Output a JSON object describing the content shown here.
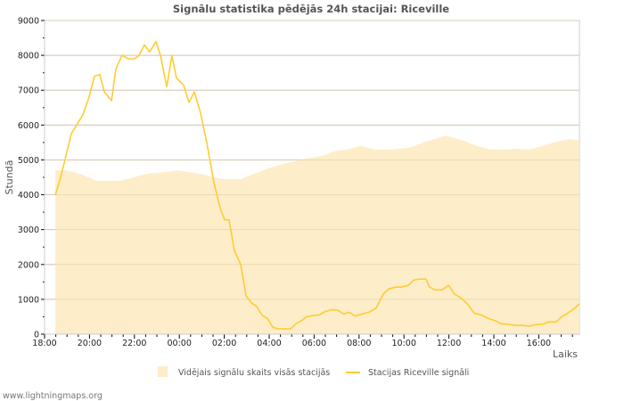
{
  "chart_data": {
    "type": "area",
    "title": "Signālu statistika pēdējās 24h stacijai: Riceville",
    "xlabel": "Laiks",
    "ylabel": "Stundā",
    "x_unit": "hours since 18:00",
    "xlim": [
      0,
      23.81
    ],
    "ylim": [
      0,
      9000
    ],
    "yticks": [
      0,
      1000,
      2000,
      3000,
      4000,
      5000,
      6000,
      7000,
      8000,
      9000
    ],
    "xticks": [
      {
        "x": 0,
        "label": "18:00"
      },
      {
        "x": 2,
        "label": "20:00"
      },
      {
        "x": 4,
        "label": "22:00"
      },
      {
        "x": 6,
        "label": "00:00"
      },
      {
        "x": 8,
        "label": "02:00"
      },
      {
        "x": 10,
        "label": "04:00"
      },
      {
        "x": 12,
        "label": "06:00"
      },
      {
        "x": 14,
        "label": "08:00"
      },
      {
        "x": 16,
        "label": "10:00"
      },
      {
        "x": 18,
        "label": "12:00"
      },
      {
        "x": 20,
        "label": "14:00"
      },
      {
        "x": 22,
        "label": "16:00"
      }
    ],
    "grid": true,
    "legend_position": "bottom",
    "series": [
      {
        "name": "Vidējais signālu skaits visās stacijās",
        "kind": "area",
        "color": "#fdedc9",
        "x": [
          0.48,
          0.99,
          1.59,
          2.3,
          3.37,
          3.97,
          4.56,
          5.36,
          5.95,
          6.94,
          7.54,
          7.94,
          8.73,
          9.33,
          9.92,
          10.71,
          11.71,
          12.3,
          12.9,
          13.49,
          14.09,
          14.68,
          15.48,
          16.27,
          16.87,
          17.86,
          18.65,
          19.25,
          19.84,
          20.63,
          21.03,
          21.63,
          22.42,
          23.02,
          23.41,
          23.81
        ],
        "y": [
          4700,
          4700,
          4600,
          4400,
          4400,
          4500,
          4600,
          4650,
          4700,
          4600,
          4500,
          4450,
          4450,
          4600,
          4750,
          4900,
          5050,
          5100,
          5250,
          5300,
          5400,
          5300,
          5300,
          5350,
          5500,
          5700,
          5550,
          5400,
          5300,
          5300,
          5320,
          5300,
          5450,
          5550,
          5600,
          5550
        ]
      },
      {
        "name": "Stacijas Riceville signāli",
        "kind": "line",
        "color": "#ffcc33",
        "x": [
          0.48,
          0.67,
          0.87,
          1.19,
          1.43,
          1.71,
          1.98,
          2.22,
          2.46,
          2.66,
          2.98,
          3.17,
          3.45,
          3.73,
          4.01,
          4.21,
          4.44,
          4.68,
          4.96,
          5.16,
          5.44,
          5.67,
          5.87,
          6.19,
          6.43,
          6.67,
          6.94,
          7.22,
          7.54,
          7.82,
          8.02,
          8.21,
          8.45,
          8.73,
          8.97,
          9.21,
          9.44,
          9.68,
          9.92,
          10.16,
          10.4,
          10.71,
          10.95,
          11.19,
          11.43,
          11.67,
          11.9,
          12.22,
          12.5,
          12.78,
          13.02,
          13.33,
          13.57,
          13.81,
          14.13,
          14.44,
          14.76,
          15.08,
          15.32,
          15.63,
          15.87,
          16.19,
          16.43,
          16.67,
          16.98,
          17.14,
          17.38,
          17.7,
          17.98,
          18.25,
          18.57,
          18.85,
          19.13,
          19.44,
          19.76,
          20.08,
          20.32,
          20.63,
          20.95,
          21.27,
          21.59,
          21.83,
          22.14,
          22.46,
          22.78,
          23.02,
          23.29,
          23.61,
          23.81
        ],
        "y": [
          4000,
          4400,
          4900,
          5750,
          6000,
          6300,
          6800,
          7400,
          7450,
          6950,
          6700,
          7600,
          8000,
          7900,
          7900,
          8000,
          8300,
          8100,
          8400,
          8000,
          7100,
          8000,
          7350,
          7150,
          6650,
          6950,
          6350,
          5500,
          4350,
          3600,
          3280,
          3280,
          2400,
          2000,
          1100,
          900,
          800,
          550,
          450,
          200,
          150,
          150,
          150,
          300,
          380,
          500,
          530,
          550,
          650,
          700,
          690,
          580,
          630,
          520,
          580,
          630,
          750,
          1150,
          1300,
          1350,
          1350,
          1400,
          1550,
          1580,
          1580,
          1350,
          1270,
          1270,
          1400,
          1150,
          1020,
          850,
          600,
          550,
          450,
          380,
          300,
          280,
          250,
          250,
          230,
          270,
          280,
          350,
          350,
          500,
          600,
          750,
          870
        ]
      }
    ]
  },
  "watermark": "www.lightningmaps.org"
}
